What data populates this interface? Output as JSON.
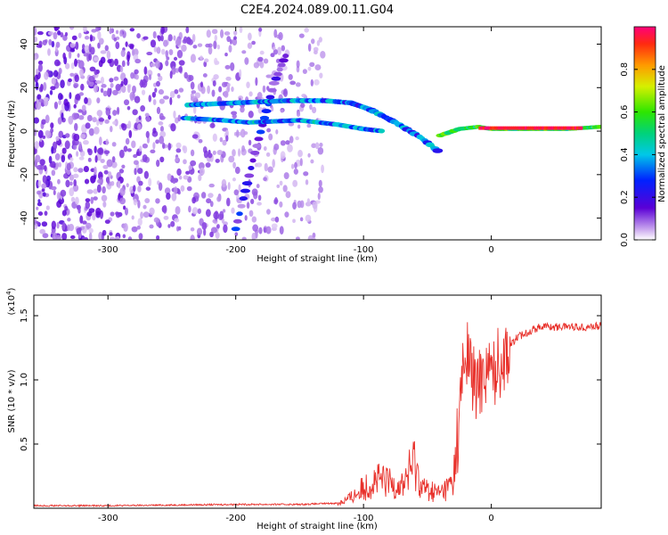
{
  "title": "C2E4.2024.089.00.11.G04",
  "chart_data": [
    {
      "type": "heatmap",
      "title": "C2E4.2024.089.00.11.G04",
      "xlabel": "Height of straight line (km)",
      "ylabel": "Frequency (Hz)",
      "xlim": [
        -358,
        86
      ],
      "ylim": [
        -50,
        48
      ],
      "xticks": [
        -300,
        -200,
        -100,
        0
      ],
      "xticklabels": [
        "-300",
        "-200",
        "-100",
        "0"
      ],
      "yticks": [
        -40,
        -20,
        0,
        20,
        40
      ],
      "yticklabels": [
        "-40",
        "-20",
        "0",
        "20",
        "40"
      ],
      "colorbar": {
        "label": "Normalized spectral amplitude",
        "range": [
          0,
          1
        ],
        "ticks": [
          0.0,
          0.2,
          0.4,
          0.6,
          0.8
        ],
        "ticklabels": [
          "0.0",
          "0.2",
          "0.4",
          "0.6",
          "0.8"
        ]
      },
      "features": [
        {
          "name": "noise region",
          "x_range": [
            -358,
            -130
          ],
          "amplitude": 0.1
        },
        {
          "name": "upper trace",
          "points": [
            [
              -238,
              12
            ],
            [
              -200,
              13
            ],
            [
              -160,
              14
            ],
            [
              -130,
              14
            ],
            [
              -110,
              13
            ],
            [
              -95,
              10
            ],
            [
              -75,
              4
            ],
            [
              -55,
              -3
            ],
            [
              -42,
              -9
            ]
          ]
        },
        {
          "name": "lower trace",
          "points": [
            [
              -240,
              6
            ],
            [
              -210,
              5
            ],
            [
              -190,
              4
            ],
            [
              -150,
              5
            ],
            [
              -120,
              3
            ],
            [
              -100,
              1
            ],
            [
              -85,
              0
            ]
          ]
        },
        {
          "name": "direct signal",
          "points": [
            [
              -40,
              -2
            ],
            [
              -25,
              1
            ],
            [
              -10,
              2
            ],
            [
              0,
              1
            ],
            [
              30,
              1
            ],
            [
              60,
              1
            ],
            [
              86,
              2
            ]
          ]
        },
        {
          "name": "diagonal streak",
          "points": [
            [
              -200,
              -45
            ],
            [
              -185,
              -10
            ],
            [
              -170,
              22
            ],
            [
              -160,
              36
            ]
          ]
        }
      ]
    },
    {
      "type": "line",
      "xlabel": "Height of straight line (km)",
      "ylabel": "SNR (10 * v/v)",
      "y_multiplier": "(x10",
      "y_multiplier_exp": "4",
      "y_multiplier_close": ")",
      "xlim": [
        -358,
        86
      ],
      "ylim": [
        0,
        1.66
      ],
      "xticks": [
        -300,
        -200,
        -100,
        0
      ],
      "xticklabels": [
        "-300",
        "-200",
        "-100",
        "0"
      ],
      "yticks": [
        0.5,
        1.0,
        1.5
      ],
      "yticklabels": [
        "0.5",
        "1.0",
        "1.5"
      ],
      "color": "#e8302a",
      "x": [
        -358,
        -300,
        -250,
        -200,
        -150,
        -120,
        -110,
        -100,
        -90,
        -80,
        -70,
        -60,
        -55,
        -50,
        -40,
        -30,
        -25,
        -22,
        -18,
        -12,
        -5,
        0,
        10,
        20,
        30,
        40,
        50,
        60,
        70,
        86
      ],
      "y": [
        0.02,
        0.02,
        0.025,
        0.03,
        0.03,
        0.04,
        0.08,
        0.16,
        0.22,
        0.2,
        0.18,
        0.36,
        0.18,
        0.14,
        0.12,
        0.2,
        0.7,
        1.1,
        1.2,
        0.9,
        1.1,
        1.05,
        1.2,
        1.33,
        1.38,
        1.42,
        1.41,
        1.42,
        1.41,
        1.42
      ]
    }
  ]
}
